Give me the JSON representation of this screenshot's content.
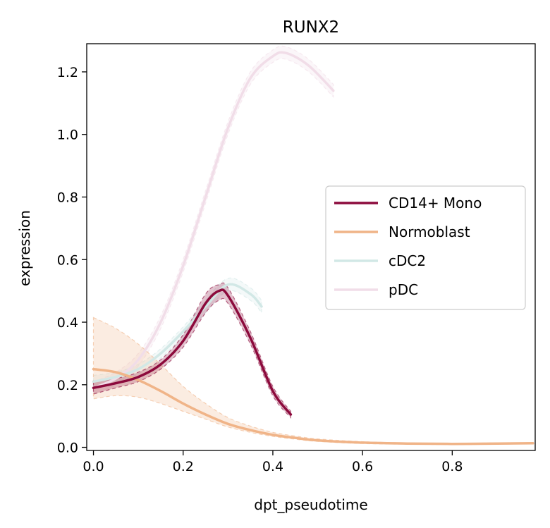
{
  "chart_data": {
    "type": "line",
    "title": "RUNX2",
    "xlabel": "dpt_pseudotime",
    "ylabel": "expression",
    "xlim": [
      -0.015,
      0.985
    ],
    "ylim": [
      -0.01,
      1.29
    ],
    "xticks": [
      0.0,
      0.2,
      0.4,
      0.6,
      0.8
    ],
    "xtick_labels": [
      "0.0",
      "0.2",
      "0.4",
      "0.6",
      "0.8"
    ],
    "yticks": [
      0.0,
      0.2,
      0.4,
      0.6,
      0.8,
      1.0,
      1.2
    ],
    "ytick_labels": [
      "0.0",
      "0.2",
      "0.4",
      "0.6",
      "0.8",
      "1.0",
      "1.2"
    ],
    "grid": false,
    "legend_position": "center-right",
    "series": [
      {
        "name": "CD14+ Mono",
        "color": "#8c0a3c",
        "x": [
          0.0,
          0.05,
          0.1,
          0.15,
          0.2,
          0.25,
          0.28,
          0.3,
          0.35,
          0.4,
          0.44
        ],
        "y": [
          0.19,
          0.205,
          0.225,
          0.265,
          0.34,
          0.46,
          0.5,
          0.485,
          0.35,
          0.18,
          0.105
        ],
        "lower": [
          0.17,
          0.19,
          0.21,
          0.25,
          0.32,
          0.43,
          0.47,
          0.46,
          0.33,
          0.165,
          0.095
        ],
        "upper": [
          0.21,
          0.22,
          0.24,
          0.28,
          0.36,
          0.49,
          0.52,
          0.51,
          0.37,
          0.195,
          0.115
        ]
      },
      {
        "name": "Normoblast",
        "color": "#f0b488",
        "x": [
          0.0,
          0.05,
          0.1,
          0.15,
          0.2,
          0.25,
          0.3,
          0.35,
          0.4,
          0.45,
          0.5,
          0.6,
          0.7,
          0.8,
          0.9,
          0.98
        ],
        "y": [
          0.25,
          0.24,
          0.215,
          0.18,
          0.14,
          0.105,
          0.075,
          0.055,
          0.04,
          0.03,
          0.022,
          0.015,
          0.012,
          0.011,
          0.012,
          0.013
        ],
        "lower": [
          0.155,
          0.165,
          0.16,
          0.14,
          0.115,
          0.09,
          0.065,
          0.048,
          0.035,
          0.026,
          0.019,
          0.012,
          0.01,
          0.009,
          0.01,
          0.011
        ],
        "upper": [
          0.415,
          0.38,
          0.33,
          0.265,
          0.195,
          0.14,
          0.095,
          0.068,
          0.048,
          0.036,
          0.027,
          0.018,
          0.014,
          0.013,
          0.014,
          0.015
        ]
      },
      {
        "name": "cDC2",
        "color": "#d2e8e6",
        "x": [
          0.0,
          0.05,
          0.1,
          0.15,
          0.2,
          0.25,
          0.3,
          0.35,
          0.375
        ],
        "y": [
          0.21,
          0.225,
          0.25,
          0.3,
          0.37,
          0.45,
          0.52,
          0.49,
          0.45
        ],
        "lower": [
          0.19,
          0.21,
          0.235,
          0.285,
          0.355,
          0.43,
          0.5,
          0.47,
          0.43
        ],
        "upper": [
          0.23,
          0.24,
          0.265,
          0.315,
          0.385,
          0.47,
          0.54,
          0.51,
          0.47
        ]
      },
      {
        "name": "pDC",
        "color": "#f1dde8",
        "x": [
          0.0,
          0.05,
          0.1,
          0.15,
          0.2,
          0.25,
          0.3,
          0.35,
          0.4,
          0.43,
          0.48,
          0.535
        ],
        "y": [
          0.19,
          0.22,
          0.28,
          0.4,
          0.58,
          0.8,
          1.02,
          1.18,
          1.25,
          1.26,
          1.22,
          1.14
        ],
        "lower": [
          0.17,
          0.2,
          0.26,
          0.38,
          0.56,
          0.78,
          1.0,
          1.16,
          1.23,
          1.24,
          1.2,
          1.12
        ],
        "upper": [
          0.21,
          0.24,
          0.3,
          0.42,
          0.6,
          0.82,
          1.04,
          1.2,
          1.27,
          1.28,
          1.24,
          1.16
        ]
      }
    ]
  }
}
